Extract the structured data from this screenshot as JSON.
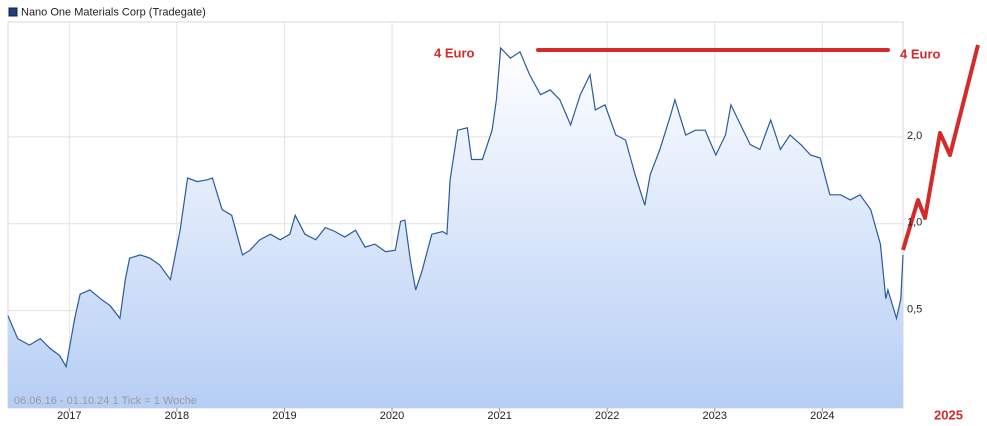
{
  "chart_data": {
    "type": "area",
    "legend": "Nano One Materials Corp (Tradegate)",
    "footnote": "06.06.16 - 01.10.24   1 Tick = 1 Woche",
    "series": [
      {
        "name": "Nano One Materials Corp (Tradegate)",
        "color": "#2a5b9a",
        "x": [
          2016.43,
          2016.52,
          2016.63,
          2016.73,
          2016.82,
          2016.91,
          2016.97,
          2017.05,
          2017.1,
          2017.19,
          2017.29,
          2017.38,
          2017.47,
          2017.52,
          2017.56,
          2017.66,
          2017.75,
          2017.84,
          2017.94,
          2018.03,
          2018.1,
          2018.19,
          2018.28,
          2018.33,
          2018.42,
          2018.51,
          2018.61,
          2018.68,
          2018.77,
          2018.87,
          2018.96,
          2019.05,
          2019.1,
          2019.19,
          2019.29,
          2019.38,
          2019.47,
          2019.56,
          2019.66,
          2019.75,
          2019.84,
          2019.94,
          2020.03,
          2020.08,
          2020.12,
          2020.17,
          2020.22,
          2020.28,
          2020.37,
          2020.47,
          2020.51,
          2020.54,
          2020.61,
          2020.7,
          2020.74,
          2020.84,
          2020.93,
          2020.97,
          2021.01,
          2021.1,
          2021.19,
          2021.28,
          2021.38,
          2021.47,
          2021.56,
          2021.66,
          2021.75,
          2021.84,
          2021.89,
          2021.98,
          2022.08,
          2022.17,
          2022.26,
          2022.35,
          2022.4,
          2022.49,
          2022.59,
          2022.63,
          2022.73,
          2022.82,
          2022.91,
          2023.01,
          2023.1,
          2023.15,
          2023.24,
          2023.33,
          2023.42,
          2023.52,
          2023.61,
          2023.7,
          2023.8,
          2023.89,
          2023.98,
          2024.07,
          2024.17,
          2024.26,
          2024.35,
          2024.45,
          2024.54,
          2024.59,
          2024.61,
          2024.69,
          2024.73,
          2024.75
        ],
        "values": [
          0.48,
          0.4,
          0.38,
          0.4,
          0.37,
          0.35,
          0.32,
          0.47,
          0.57,
          0.59,
          0.55,
          0.52,
          0.47,
          0.64,
          0.76,
          0.78,
          0.76,
          0.72,
          0.64,
          0.95,
          1.44,
          1.4,
          1.42,
          1.44,
          1.12,
          1.07,
          0.78,
          0.81,
          0.88,
          0.92,
          0.88,
          0.92,
          1.07,
          0.92,
          0.88,
          0.97,
          0.94,
          0.9,
          0.95,
          0.83,
          0.85,
          0.8,
          0.81,
          1.02,
          1.03,
          0.75,
          0.59,
          0.69,
          0.92,
          0.94,
          0.92,
          1.42,
          2.11,
          2.15,
          1.67,
          1.67,
          2.11,
          2.69,
          4.06,
          3.75,
          3.94,
          3.28,
          2.8,
          2.91,
          2.69,
          2.2,
          2.8,
          3.28,
          2.48,
          2.58,
          2.03,
          1.95,
          1.48,
          1.16,
          1.48,
          1.81,
          2.38,
          2.69,
          2.03,
          2.11,
          2.11,
          1.73,
          2.03,
          2.58,
          2.2,
          1.88,
          1.81,
          2.29,
          1.81,
          2.03,
          1.88,
          1.73,
          1.69,
          1.26,
          1.26,
          1.21,
          1.26,
          1.12,
          0.85,
          0.55,
          0.59,
          0.47,
          0.55,
          0.78
        ]
      }
    ],
    "xlim": [
      2016.43,
      2024.75
    ],
    "xticks": [
      2017,
      2018,
      2019,
      2020,
      2021,
      2022,
      2023,
      2024
    ],
    "ylim": [
      0.23,
      5
    ],
    "yticks": [
      {
        "value": 0.5,
        "label": "0,5"
      },
      {
        "value": 1,
        "label": "1,0"
      },
      {
        "value": 2,
        "label": "2,0"
      }
    ],
    "log_scale": true,
    "grid": true,
    "target": {
      "value": 4,
      "label": "4 Euro"
    },
    "projection_label": "2025"
  }
}
